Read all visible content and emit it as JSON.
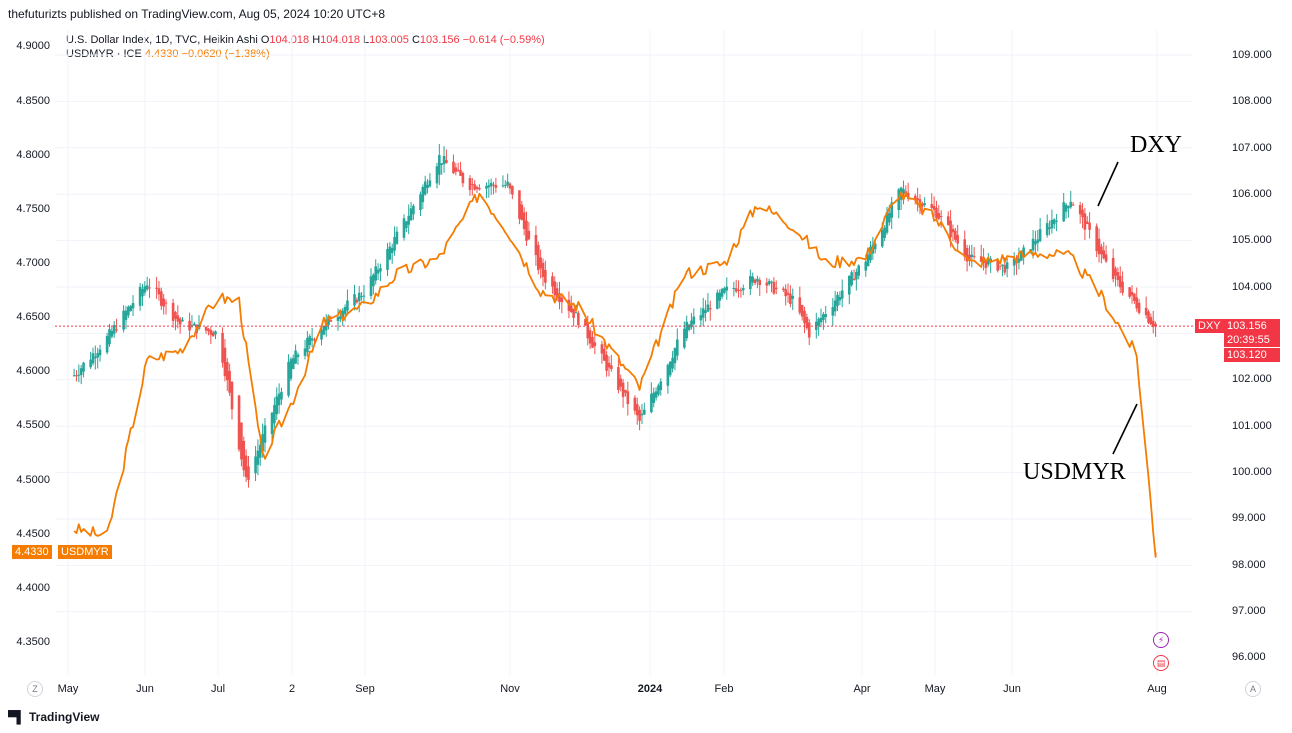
{
  "publisher_line": "thefuturizts published on TradingView.com, Aug 05, 2024 10:20 UTC+8",
  "legend": {
    "dxy": {
      "name": "U.S. Dollar Index, 1D, TVC, Heikin Ashi",
      "o_label": "O",
      "o": "104.018",
      "h_label": "H",
      "h": "104.018",
      "l_label": "L",
      "l": "103.005",
      "c_label": "C",
      "c": "103.156",
      "change": "−0.614 (−0.59%)"
    },
    "usdmyr": {
      "name": "USDMYR · ICE",
      "last": "4.4330",
      "change": "−0.0620 (−1.38%)"
    }
  },
  "colors": {
    "up": "#26a69a",
    "down": "#ef5350",
    "usdmyr_line": "#f57c00",
    "badge_red": "#f23645",
    "badge_orange": "#f57c00",
    "grid": "#f0f3fa"
  },
  "badges": {
    "dxy_label": "DXY",
    "dxy_price": "103.156",
    "countdown": "20:39:55",
    "dxy_prev": "103.120",
    "myr_price": "4.4330",
    "myr_label": "USDMYR"
  },
  "annotations": {
    "dxy": "DXY",
    "usdmyr": "USDMYR"
  },
  "buttons": {
    "zoom": "Z",
    "auto": "A"
  },
  "footer": {
    "brand": "TradingView"
  },
  "chart_data": {
    "type": "line",
    "title": "",
    "x_ticks": [
      "May",
      "Jun",
      "Jul",
      "2",
      "Sep",
      "Nov",
      "2024",
      "Feb",
      "Apr",
      "May",
      "Jun",
      "Aug"
    ],
    "left_axis_ticks": [
      "4.9000",
      "4.8500",
      "4.8000",
      "4.7500",
      "4.7000",
      "4.6500",
      "4.6000",
      "4.5500",
      "4.5000",
      "4.4500",
      "4.4000",
      "4.3500"
    ],
    "right_axis_ticks": [
      "109.000",
      "108.000",
      "107.000",
      "106.000",
      "105.000",
      "104.000",
      "102.000",
      "101.000",
      "100.000",
      "99.000",
      "98.000",
      "97.000",
      "96.000"
    ],
    "left_ylim": [
      4.3,
      4.91
    ],
    "right_ylim": [
      95.3,
      109.6
    ],
    "series": [
      {
        "name": "DXY",
        "style": "heikin-ashi candles",
        "axis": "right",
        "x": [
          "2023-05-01",
          "2023-05-15",
          "2023-06-01",
          "2023-06-15",
          "2023-07-01",
          "2023-07-13",
          "2023-08-01",
          "2023-08-15",
          "2023-09-01",
          "2023-09-15",
          "2023-10-03",
          "2023-10-15",
          "2023-11-01",
          "2023-11-15",
          "2023-12-01",
          "2023-12-27",
          "2024-01-15",
          "2024-02-01",
          "2024-02-15",
          "2024-03-01",
          "2024-03-08",
          "2024-04-01",
          "2024-04-16",
          "2024-05-01",
          "2024-05-15",
          "2024-06-01",
          "2024-06-15",
          "2024-06-27",
          "2024-07-15",
          "2024-08-02"
        ],
        "values": [
          102.1,
          102.9,
          104.1,
          103.2,
          103.0,
          99.8,
          102.4,
          103.2,
          103.9,
          105.1,
          106.8,
          106.2,
          106.2,
          104.3,
          103.3,
          101.1,
          103.1,
          103.9,
          104.2,
          103.7,
          103.0,
          104.6,
          106.1,
          105.6,
          104.6,
          104.4,
          105.2,
          105.9,
          104.2,
          103.156
        ]
      },
      {
        "name": "USDMYR",
        "style": "line",
        "axis": "left",
        "x": [
          "2023-05-01",
          "2023-05-15",
          "2023-06-01",
          "2023-06-15",
          "2023-07-01",
          "2023-07-10",
          "2023-07-20",
          "2023-08-01",
          "2023-08-15",
          "2023-09-01",
          "2023-09-15",
          "2023-10-03",
          "2023-10-20",
          "2023-11-01",
          "2023-11-15",
          "2023-12-01",
          "2023-12-27",
          "2024-01-15",
          "2024-02-01",
          "2024-02-15",
          "2024-03-01",
          "2024-03-15",
          "2024-04-01",
          "2024-04-15",
          "2024-05-01",
          "2024-05-15",
          "2024-06-01",
          "2024-06-15",
          "2024-06-27",
          "2024-07-10",
          "2024-07-25",
          "2024-08-02"
        ],
        "values": [
          4.455,
          4.448,
          4.61,
          4.62,
          4.668,
          4.665,
          4.52,
          4.57,
          4.645,
          4.66,
          4.69,
          4.705,
          4.765,
          4.73,
          4.675,
          4.66,
          4.585,
          4.69,
          4.7,
          4.755,
          4.735,
          4.7,
          4.705,
          4.765,
          4.74,
          4.7,
          4.705,
          4.71,
          4.705,
          4.67,
          4.615,
          4.433
        ]
      }
    ]
  }
}
